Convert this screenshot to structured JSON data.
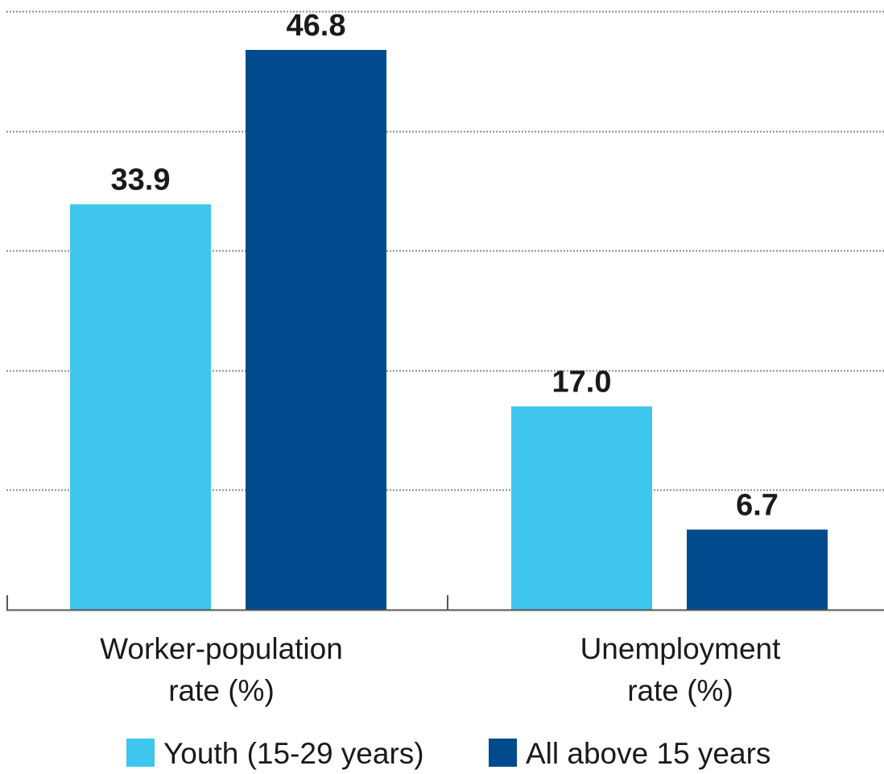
{
  "chart_data": {
    "type": "bar",
    "title": "",
    "xlabel": "",
    "ylabel": "",
    "categories": [
      [
        "Worker-population",
        "rate (%)"
      ],
      [
        "Unemployment",
        "rate (%)"
      ]
    ],
    "series": [
      {
        "name": "Youth (15-29 years)",
        "color": "#3fc6ef",
        "values": [
          33.9,
          17.0
        ],
        "labels": [
          "33.9",
          "17.0"
        ]
      },
      {
        "name": "All above 15 years",
        "color": "#004b8d",
        "values": [
          46.8,
          6.7
        ],
        "labels": [
          "46.8",
          "6.7"
        ]
      }
    ],
    "ylim": [
      0,
      50
    ],
    "grid": true,
    "legend_position": "bottom"
  }
}
